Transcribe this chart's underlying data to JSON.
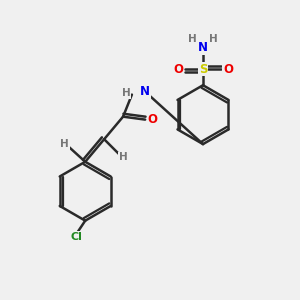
{
  "bg_color": "#f0f0f0",
  "bond_color": "#2a2a2a",
  "bond_width": 1.8,
  "atom_colors": {
    "N": "#0000ee",
    "O": "#ee0000",
    "S": "#cccc00",
    "Cl": "#228822",
    "H": "#777777",
    "C": "#2a2a2a"
  },
  "font_size_atom": 8.5,
  "font_size_h": 7.5,
  "fig_size": [
    3.0,
    3.0
  ],
  "dpi": 100,
  "xlim": [
    0,
    10
  ],
  "ylim": [
    0,
    10
  ]
}
